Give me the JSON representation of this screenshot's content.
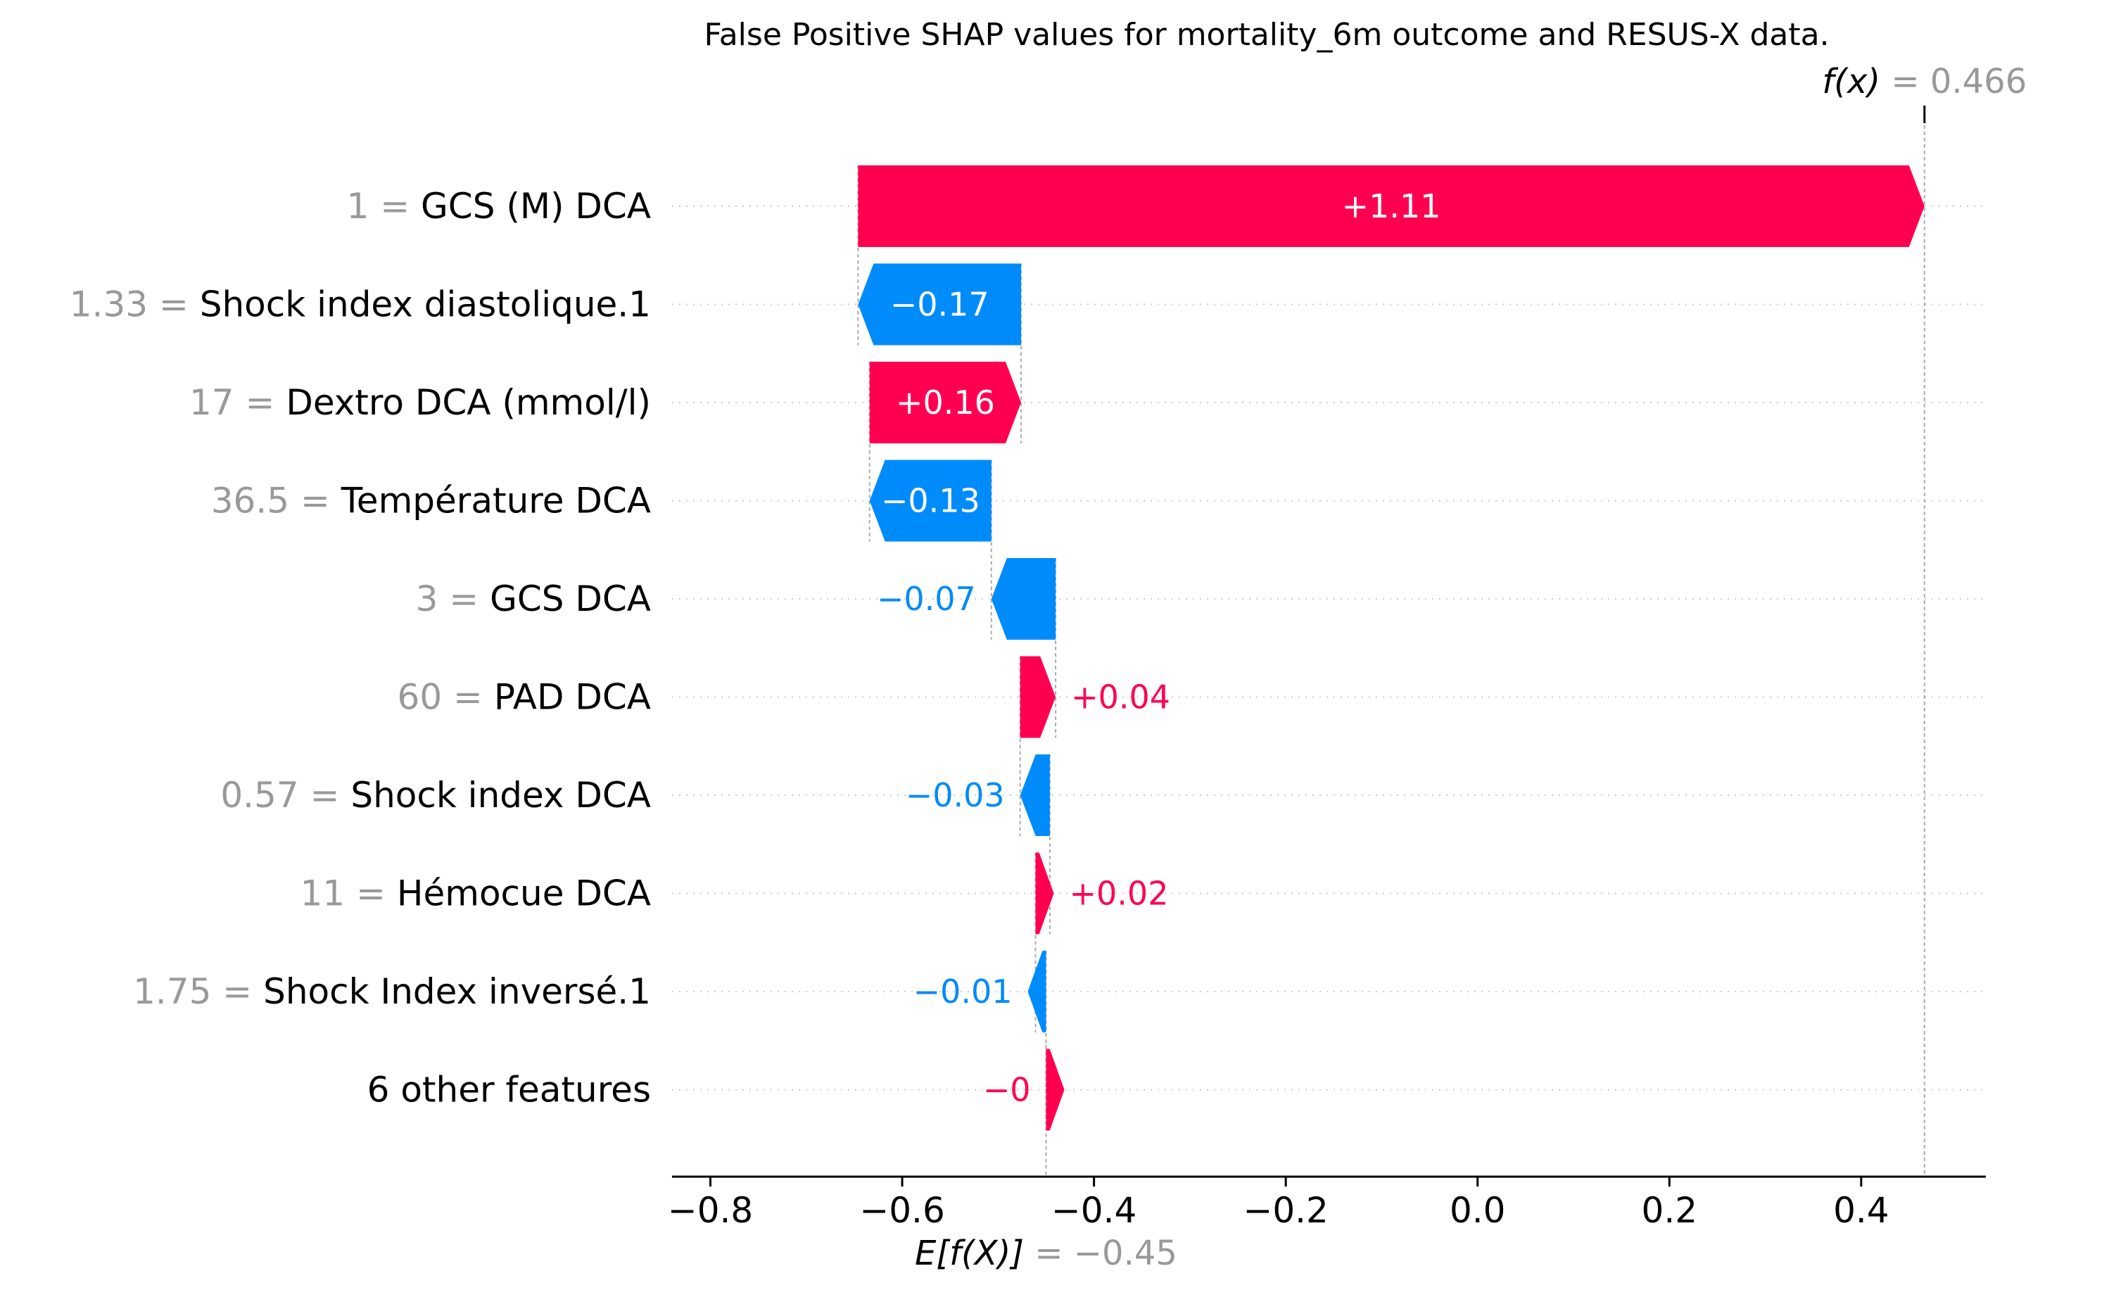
{
  "chart_data": {
    "type": "waterfall",
    "title": "False Positive SHAP values for mortality_6m outcome and RESUS-X data.",
    "xlabel": "",
    "ylabel": "",
    "xlim": [
      -0.84,
      0.53
    ],
    "xticks": [
      -0.8,
      -0.6,
      -0.4,
      -0.2,
      0.0,
      0.2,
      0.4
    ],
    "xtick_labels": [
      "−0.8",
      "−0.6",
      "−0.4",
      "−0.2",
      "0.0",
      "0.2",
      "0.4"
    ],
    "base_value": -0.45,
    "base_label": "E[f(X)]",
    "base_value_text": "= −0.45",
    "output_value": 0.466,
    "output_label": "f(x)",
    "output_value_text": "= 0.466",
    "grid": "horizontal dotted guide per row",
    "colors": {
      "positive": "#ff0051",
      "negative": "#008bfb"
    },
    "features": [
      {
        "value": "1",
        "name": "GCS (M) DCA",
        "shap": 1.11,
        "label": "+1.11",
        "start": -0.646,
        "end": 0.466
      },
      {
        "value": "1.33",
        "name": "Shock index diastolique.1",
        "shap": -0.17,
        "label": "−0.17",
        "start": -0.476,
        "end": -0.646
      },
      {
        "value": "17",
        "name": "Dextro DCA (mmol/l)",
        "shap": 0.16,
        "label": "+0.16",
        "start": -0.634,
        "end": -0.476
      },
      {
        "value": "36.5",
        "name": "Température DCA",
        "shap": -0.13,
        "label": "−0.13",
        "start": -0.507,
        "end": -0.634
      },
      {
        "value": "3",
        "name": "GCS DCA",
        "shap": -0.07,
        "label": "−0.07",
        "start": -0.44,
        "end": -0.507
      },
      {
        "value": "60",
        "name": "PAD DCA",
        "shap": 0.04,
        "label": "+0.04",
        "start": -0.477,
        "end": -0.44
      },
      {
        "value": "0.57",
        "name": "Shock index DCA",
        "shap": -0.03,
        "label": "−0.03",
        "start": -0.446,
        "end": -0.477
      },
      {
        "value": "11",
        "name": "Hémocue DCA",
        "shap": 0.02,
        "label": "+0.02",
        "start": -0.461,
        "end": -0.446
      },
      {
        "value": "1.75",
        "name": "Shock Index inversé.1",
        "shap": -0.01,
        "label": "−0.01",
        "start": -0.45,
        "end": -0.461
      },
      {
        "value": "",
        "name": "6 other features",
        "shap": 0.0,
        "label": "−0",
        "start": -0.45,
        "end": -0.45
      }
    ]
  }
}
